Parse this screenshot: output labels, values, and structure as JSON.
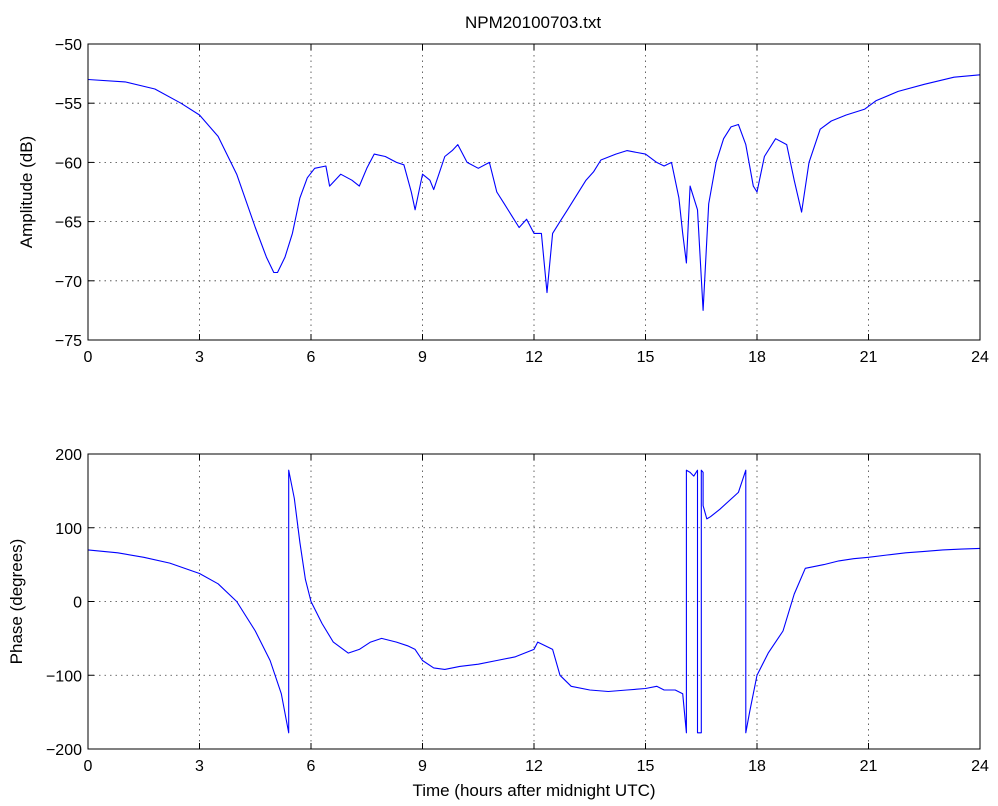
{
  "figure_title": "NPM20100703.txt",
  "colors": {
    "series": "#0000ff",
    "axes": "#000000",
    "background": "#ffffff"
  },
  "chart_data": [
    {
      "type": "line",
      "title": "NPM20100703.txt",
      "xlabel": "",
      "ylabel": "Amplitude (dB)",
      "xlim": [
        0,
        24
      ],
      "ylim": [
        -75,
        -50
      ],
      "xticks": [
        0,
        3,
        6,
        9,
        12,
        15,
        18,
        21,
        24
      ],
      "yticks": [
        -50,
        -55,
        -60,
        -65,
        -70,
        -75
      ],
      "xtick_labels": [
        "0",
        "3",
        "6",
        "9",
        "12",
        "15",
        "18",
        "21",
        "24"
      ],
      "ytick_labels": [
        "−50",
        "−55",
        "−60",
        "−65",
        "−70",
        "−75"
      ],
      "grid": true,
      "series": [
        {
          "x": [
            0,
            1,
            1.8,
            2.5,
            3,
            3.5,
            4,
            4.5,
            4.8,
            5.0,
            5.1,
            5.3,
            5.5,
            5.7,
            5.9,
            6.1,
            6.4,
            6.5,
            6.8,
            7.1,
            7.3,
            7.5,
            7.7,
            8.0,
            8.3,
            8.5,
            8.7,
            8.8,
            9.0,
            9.2,
            9.3,
            9.6,
            9.8,
            9.95,
            10.2,
            10.5,
            10.8,
            11.0,
            11.2,
            11.4,
            11.6,
            11.8,
            12.0,
            12.2,
            12.35,
            12.5,
            12.7,
            12.9,
            13.1,
            13.4,
            13.6,
            13.8,
            14.2,
            14.5,
            15.0,
            15.3,
            15.5,
            15.7,
            15.9,
            16.0,
            16.1,
            16.2,
            16.4,
            16.55,
            16.7,
            16.9,
            17.1,
            17.3,
            17.5,
            17.7,
            17.9,
            18.0,
            18.2,
            18.5,
            18.8,
            19.0,
            19.2,
            19.4,
            19.7,
            20.0,
            20.4,
            20.9,
            21.2,
            21.8,
            22.5,
            23.3,
            24
          ],
          "y": [
            -53.0,
            -53.2,
            -53.8,
            -55.0,
            -56.0,
            -57.8,
            -61.0,
            -65.5,
            -68.0,
            -69.3,
            -69.3,
            -68.0,
            -66.0,
            -63.0,
            -61.3,
            -60.5,
            -60.3,
            -62.0,
            -61.0,
            -61.5,
            -62.0,
            -60.5,
            -59.3,
            -59.5,
            -60.0,
            -60.2,
            -62.5,
            -64.0,
            -61.0,
            -61.5,
            -62.3,
            -59.5,
            -59.0,
            -58.5,
            -60.0,
            -60.5,
            -60.0,
            -62.5,
            -63.5,
            -64.5,
            -65.5,
            -64.8,
            -66.0,
            -66.0,
            -71.0,
            -66.0,
            -65.0,
            -64.0,
            -63.0,
            -61.5,
            -60.8,
            -59.8,
            -59.3,
            -59.0,
            -59.3,
            -60.0,
            -60.3,
            -60.0,
            -63.0,
            -66.0,
            -68.5,
            -62.0,
            -64.0,
            -72.5,
            -63.5,
            -60.0,
            -58.0,
            -57.0,
            -56.8,
            -58.5,
            -62.0,
            -62.5,
            -59.5,
            -58.0,
            -58.5,
            -61.5,
            -64.2,
            -60.0,
            -57.2,
            -56.5,
            -56.0,
            -55.5,
            -54.8,
            -54.0,
            -53.4,
            -52.8,
            -52.6
          ]
        }
      ]
    },
    {
      "type": "line",
      "title": "",
      "xlabel": "Time (hours after midnight UTC)",
      "ylabel": "Phase (degrees)",
      "xlim": [
        0,
        24
      ],
      "ylim": [
        -200,
        200
      ],
      "xticks": [
        0,
        3,
        6,
        9,
        12,
        15,
        18,
        21,
        24
      ],
      "yticks": [
        200,
        100,
        0,
        -100,
        -200
      ],
      "xtick_labels": [
        "0",
        "3",
        "6",
        "9",
        "12",
        "15",
        "18",
        "21",
        "24"
      ],
      "ytick_labels": [
        "200",
        "100",
        "0",
        "−100",
        "−200"
      ],
      "grid": true,
      "series": [
        {
          "x": [
            0,
            0.8,
            1.5,
            2.2,
            3.0,
            3.5,
            4.0,
            4.5,
            4.9,
            5.2,
            5.4,
            5.4,
            5.55,
            5.7,
            5.85,
            6.0,
            6.3,
            6.6,
            7.0,
            7.3,
            7.6,
            7.9,
            8.3,
            8.6,
            8.8,
            9.0,
            9.3,
            9.6,
            10.0,
            10.5,
            11.0,
            11.5,
            12.0,
            12.1,
            12.3,
            12.5,
            12.7,
            13.0,
            13.5,
            14.0,
            14.5,
            15.0,
            15.3,
            15.5,
            15.8,
            16.0,
            16.1,
            16.1,
            16.2,
            16.3,
            16.4,
            16.4,
            16.5,
            16.5,
            16.55,
            16.55,
            16.65,
            16.75,
            17.0,
            17.5,
            17.7,
            17.7,
            17.8,
            18.0,
            18.3,
            18.7,
            19.0,
            19.3,
            19.5,
            19.8,
            20.2,
            20.6,
            21.0,
            21.5,
            22.0,
            22.5,
            23.0,
            23.5,
            24
          ],
          "y": [
            70,
            66,
            60,
            52,
            38,
            24,
            0,
            -40,
            -80,
            -125,
            -178,
            178,
            140,
            80,
            30,
            0,
            -30,
            -55,
            -70,
            -65,
            -55,
            -50,
            -55,
            -60,
            -65,
            -80,
            -90,
            -92,
            -88,
            -85,
            -80,
            -75,
            -65,
            -55,
            -60,
            -65,
            -100,
            -115,
            -120,
            -122,
            -120,
            -118,
            -115,
            -120,
            -120,
            -125,
            -178,
            178,
            175,
            170,
            178,
            -178,
            -178,
            178,
            175,
            130,
            112,
            115,
            125,
            148,
            178,
            -178,
            -150,
            -100,
            -70,
            -40,
            10,
            45,
            47,
            50,
            55,
            58,
            60,
            63,
            66,
            68,
            70,
            71,
            72
          ]
        }
      ]
    }
  ]
}
